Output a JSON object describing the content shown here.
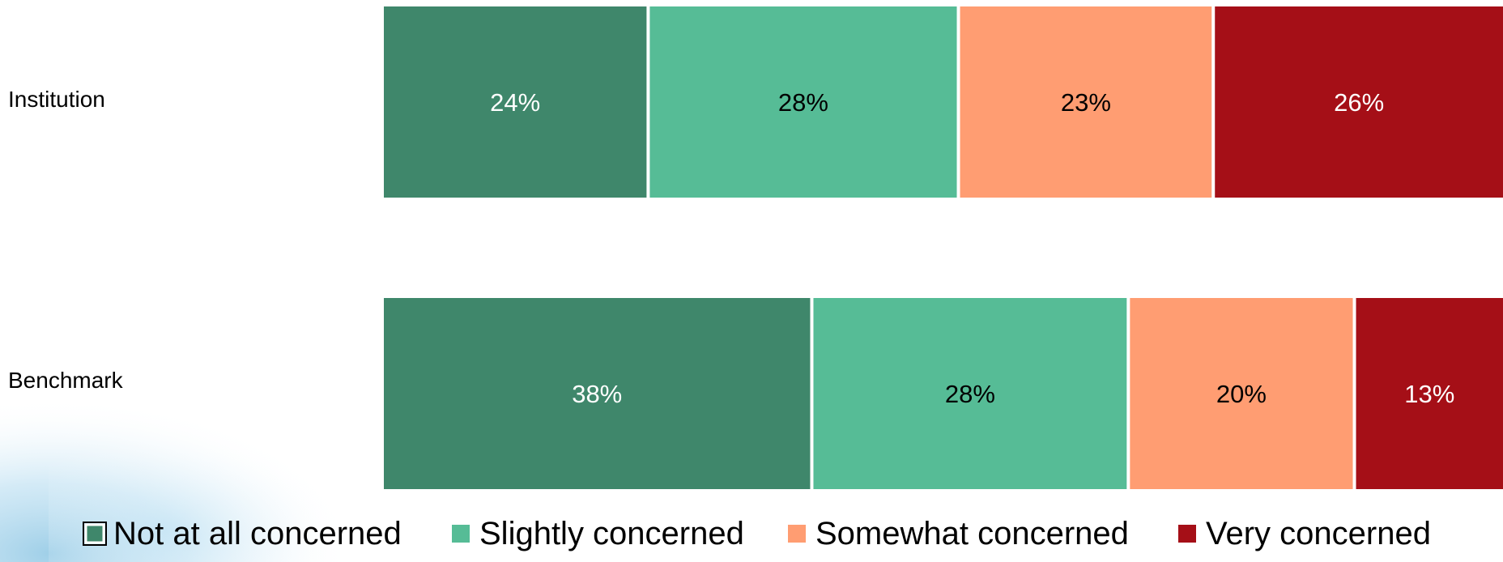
{
  "chart_data": {
    "type": "bar",
    "orientation": "horizontal",
    "stacked": true,
    "categories": [
      "Institution",
      "Benchmark"
    ],
    "series": [
      {
        "name": "Not at all concerned",
        "values": [
          24,
          38
        ],
        "labels": [
          "24%",
          "38%"
        ],
        "color": "#3f876b",
        "label_color": "#ffffff"
      },
      {
        "name": "Slightly concerned",
        "values": [
          28,
          28
        ],
        "labels": [
          "28%",
          "28%"
        ],
        "color": "#56bc96",
        "label_color": "#000000"
      },
      {
        "name": "Somewhat concerned",
        "values": [
          23,
          20
        ],
        "labels": [
          "23%",
          "20%"
        ],
        "color": "#ff9d72",
        "label_color": "#000000"
      },
      {
        "name": "Very concerned",
        "values": [
          26,
          13
        ],
        "labels": [
          "26%",
          "13%"
        ],
        "color": "#a50f17",
        "label_color": "#ffffff"
      }
    ],
    "legend_position": "bottom",
    "gridlines": false,
    "axis_visible": false
  }
}
